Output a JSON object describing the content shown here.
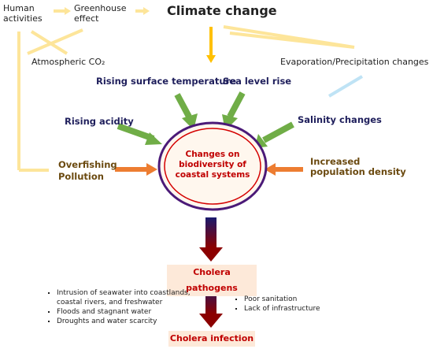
{
  "nodes": {
    "human_activities": "Human activities",
    "greenhouse_effect": "Greenhouse effect",
    "climate_change": "Climate change",
    "atmospheric_co2": "Atmospheric CO₂",
    "evaporation": "Evaporation/Precipitation changes",
    "rising_temperature": "Rising surface temperature",
    "sea_level_rise": "Sea level rise",
    "rising_acidity": "Rising acidity",
    "salinity_changes": "Salinity changes",
    "overfishing": [
      "Overfishing",
      "Pollution"
    ],
    "population_density": "Increased population density",
    "center": "Changes on biodiversity of coastal systems",
    "cholera_pathogens": "Cholera pathogens",
    "cholera_infection": "Cholera infection"
  },
  "factors_left": [
    "Intrusion of seawater into coastlands, coastal rivers, and freshwater",
    "Floods and stagnant water",
    "Droughts and water scarcity"
  ],
  "factors_right": [
    "Poor sanitation",
    "Lack of infrastructure"
  ]
}
